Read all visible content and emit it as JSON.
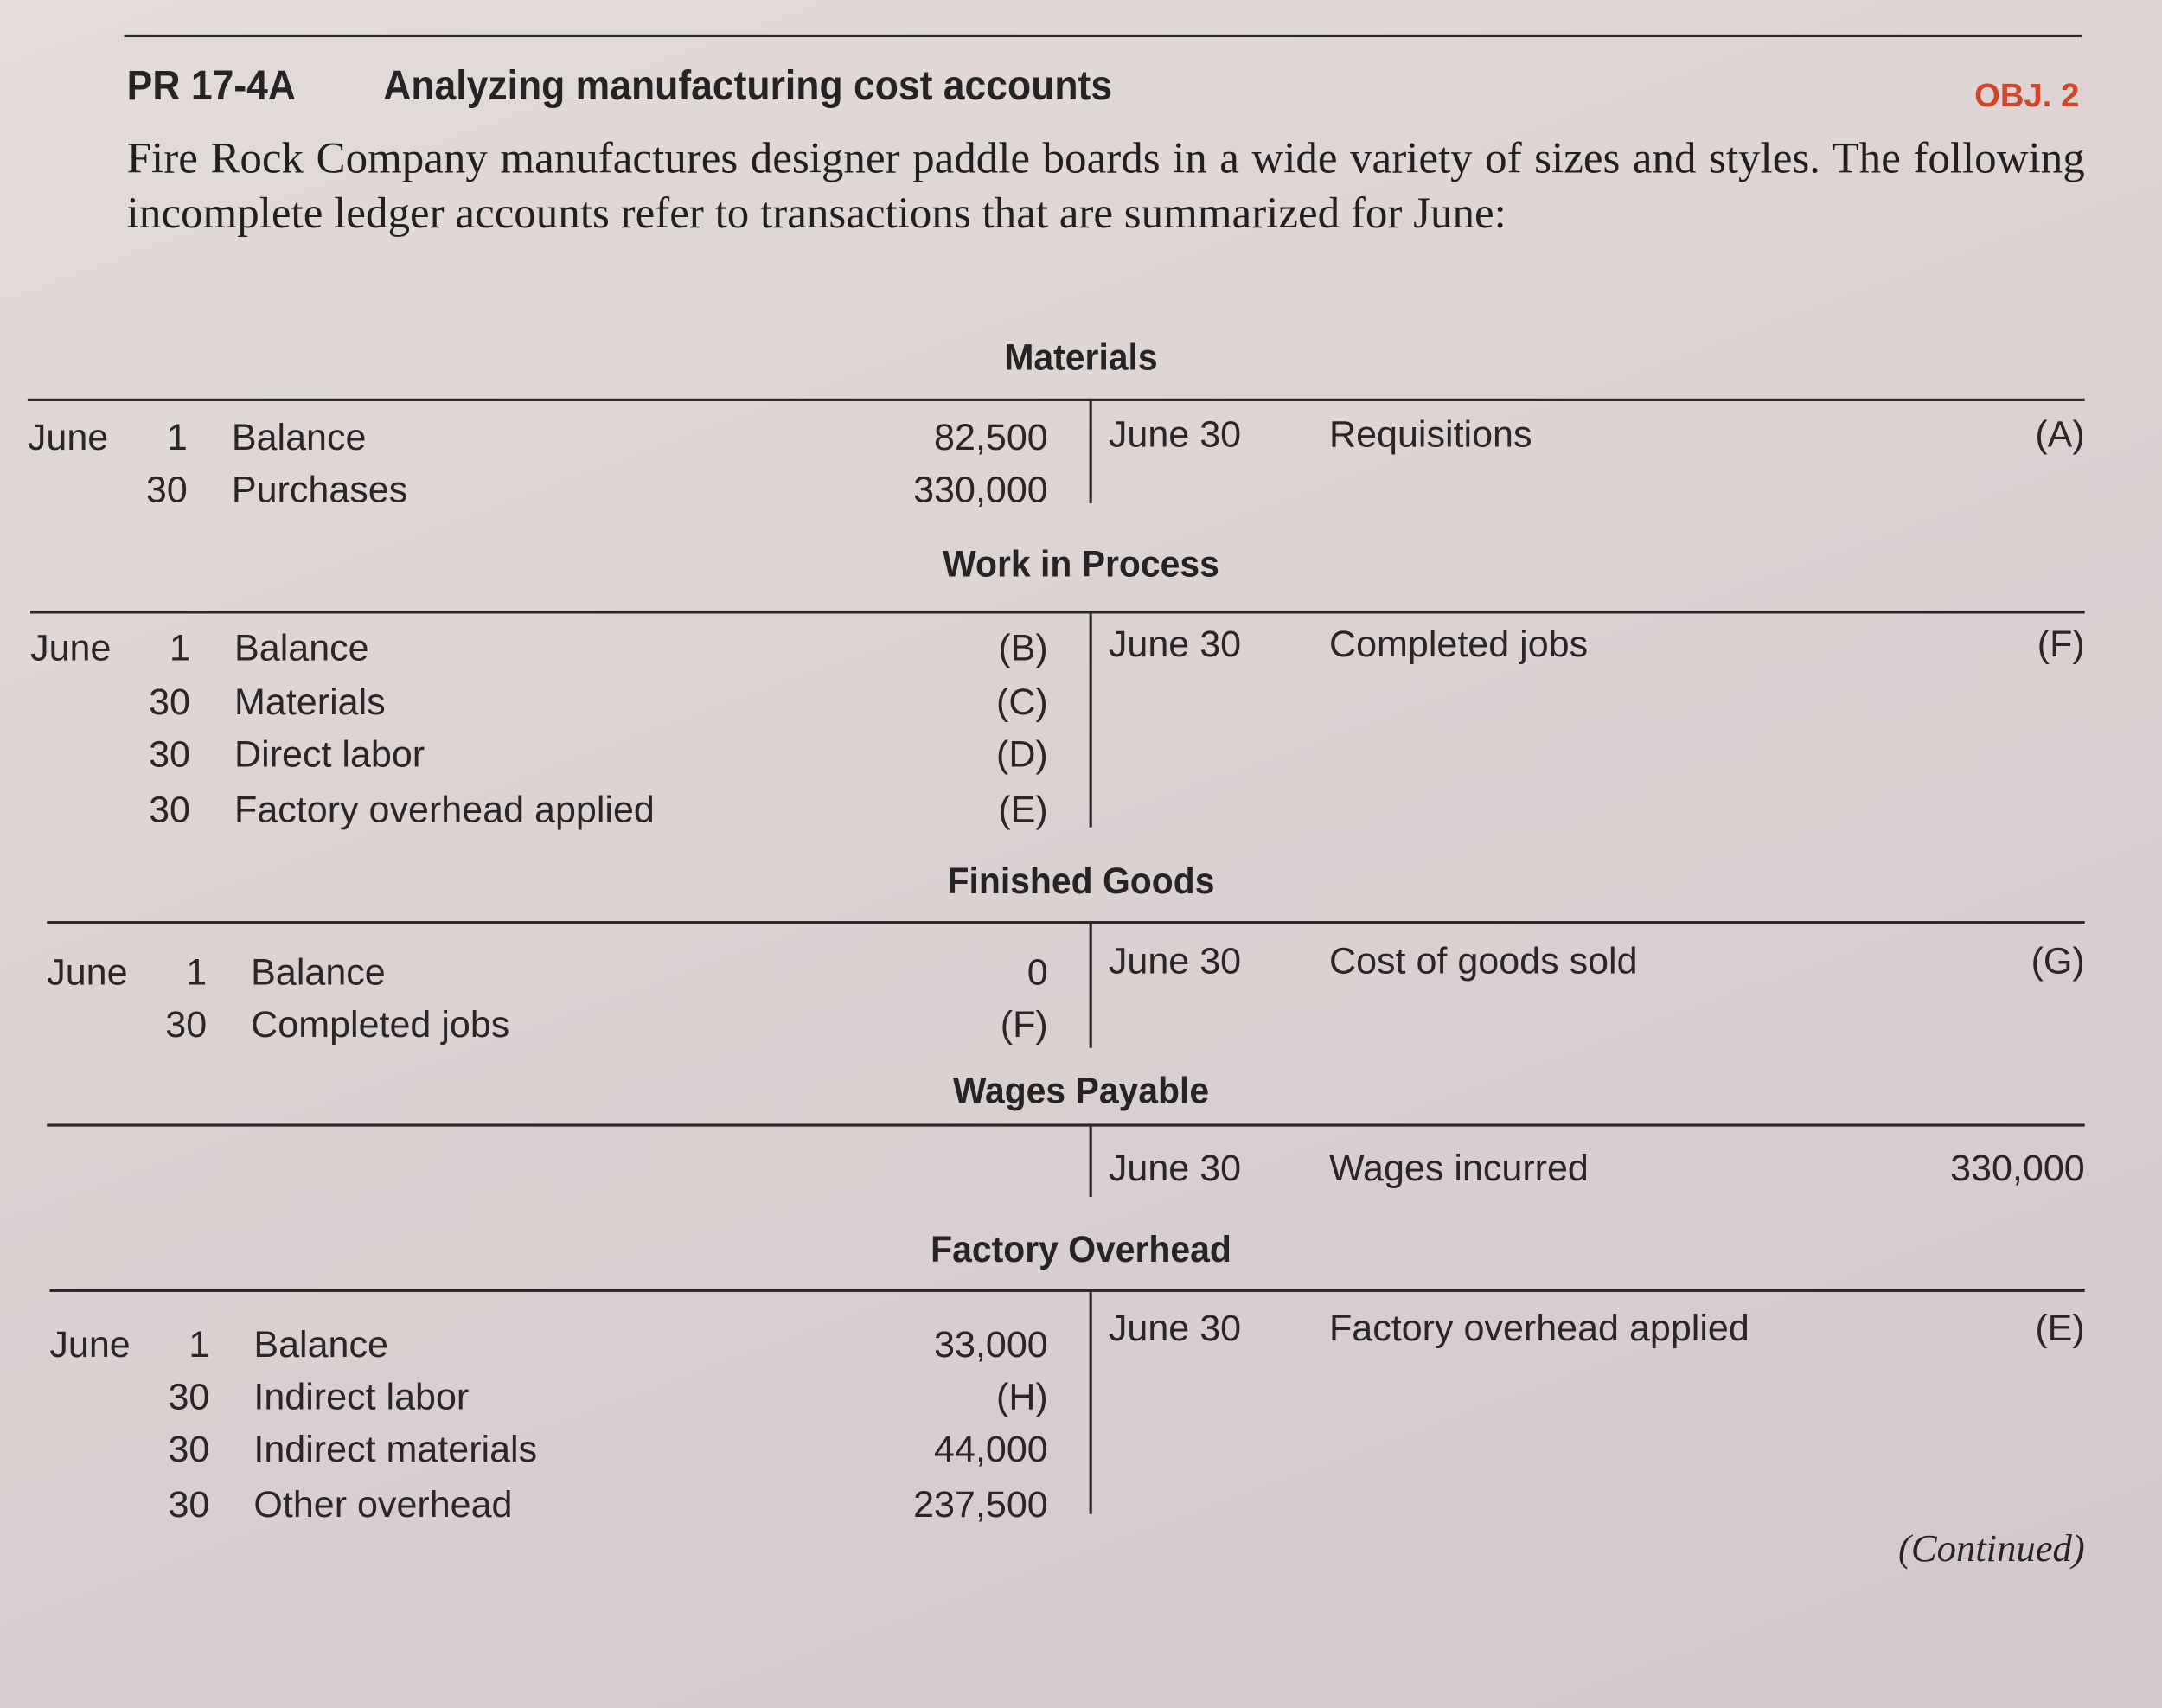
{
  "header": {
    "code": "PR 17-4A",
    "title": "Analyzing manufacturing cost accounts",
    "objective": "OBJ. 2"
  },
  "intro": "Fire Rock Company manufactures designer paddle boards in a wide variety of sizes and styles. The following incomplete ledger accounts refer to transactions that are summarized for June:",
  "ledgers": [
    {
      "title": "Materials",
      "debits": [
        {
          "month": "June",
          "day": "1",
          "desc": "Balance",
          "amount": "82,500"
        },
        {
          "month": "",
          "day": "30",
          "desc": "Purchases",
          "amount": "330,000"
        }
      ],
      "credits": [
        {
          "date": "June 30",
          "desc": "Requisitions",
          "amount": "(A)"
        }
      ]
    },
    {
      "title": "Work in Process",
      "debits": [
        {
          "month": "June",
          "day": "1",
          "desc": "Balance",
          "amount": "(B)"
        },
        {
          "month": "",
          "day": "30",
          "desc": "Materials",
          "amount": "(C)"
        },
        {
          "month": "",
          "day": "30",
          "desc": "Direct labor",
          "amount": "(D)"
        },
        {
          "month": "",
          "day": "30",
          "desc": "Factory overhead applied",
          "amount": "(E)"
        }
      ],
      "credits": [
        {
          "date": "June 30",
          "desc": "Completed jobs",
          "amount": "(F)"
        }
      ]
    },
    {
      "title": "Finished Goods",
      "debits": [
        {
          "month": "June",
          "day": "1",
          "desc": "Balance",
          "amount": "0"
        },
        {
          "month": "",
          "day": "30",
          "desc": "Completed jobs",
          "amount": "(F)"
        }
      ],
      "credits": [
        {
          "date": "June 30",
          "desc": "Cost of goods sold",
          "amount": "(G)"
        }
      ]
    },
    {
      "title": "Wages Payable",
      "debits": [],
      "credits": [
        {
          "date": "June 30",
          "desc": "Wages incurred",
          "amount": "330,000"
        }
      ]
    },
    {
      "title": "Factory Overhead",
      "debits": [
        {
          "month": "June",
          "day": "1",
          "desc": "Balance",
          "amount": "33,000"
        },
        {
          "month": "",
          "day": "30",
          "desc": "Indirect labor",
          "amount": "(H)"
        },
        {
          "month": "",
          "day": "30",
          "desc": "Indirect materials",
          "amount": "44,000"
        },
        {
          "month": "",
          "day": "30",
          "desc": "Other overhead",
          "amount": "237,500"
        }
      ],
      "credits": [
        {
          "date": "June 30",
          "desc": "Factory overhead applied",
          "amount": "(E)"
        }
      ]
    }
  ],
  "footer": {
    "continued": "(Continued)"
  },
  "colors": {
    "objective": "#d2452b",
    "text": "#262324"
  }
}
